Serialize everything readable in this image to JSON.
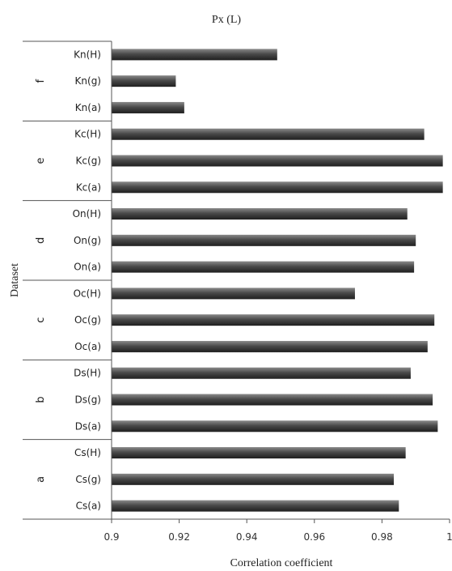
{
  "chart_data": {
    "type": "bar",
    "orientation": "horizontal",
    "title": "Px (L)",
    "xlabel": "Correlation coefficient",
    "ylabel": "Dataset",
    "xlim": [
      0.9,
      1.0
    ],
    "xticks": [
      "0.9",
      "0.92",
      "0.94",
      "0.96",
      "0.98",
      "1"
    ],
    "groups": [
      {
        "name": "a",
        "categories": [
          "Cs(a)",
          "Cs(g)",
          "Cs(H)"
        ],
        "values": [
          0.985,
          0.9835,
          0.987
        ]
      },
      {
        "name": "b",
        "categories": [
          "Ds(a)",
          "Ds(g)",
          "Ds(H)"
        ],
        "values": [
          0.9965,
          0.995,
          0.9885
        ]
      },
      {
        "name": "c",
        "categories": [
          "Oc(a)",
          "Oc(g)",
          "Oc(H)"
        ],
        "values": [
          0.9935,
          0.9955,
          0.972
        ]
      },
      {
        "name": "d",
        "categories": [
          "On(a)",
          "On(g)",
          "On(H)"
        ],
        "values": [
          0.9895,
          0.99,
          0.9875
        ]
      },
      {
        "name": "e",
        "categories": [
          "Kc(a)",
          "Kc(g)",
          "Kc(H)"
        ],
        "values": [
          0.998,
          0.998,
          0.9925
        ]
      },
      {
        "name": "f",
        "categories": [
          "Kn(a)",
          "Kn(g)",
          "Kn(H)"
        ],
        "values": [
          0.9215,
          0.919,
          0.949
        ]
      }
    ],
    "bar_color": "#454545",
    "grid": false,
    "legend": "none"
  }
}
